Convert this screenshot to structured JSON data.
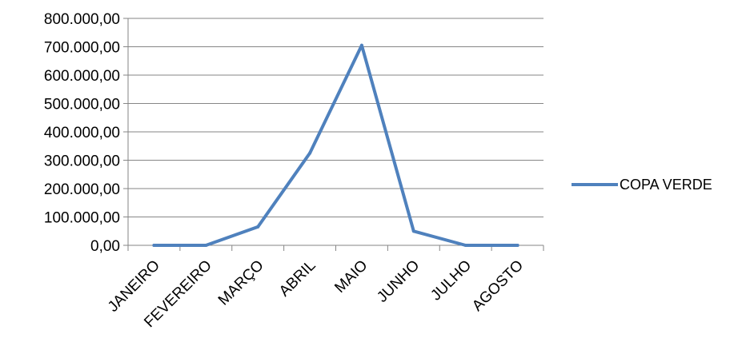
{
  "chart_data": {
    "type": "line",
    "categories": [
      "JANEIRO",
      "FEVEREIRO",
      "MARÇO",
      "ABRIL",
      "MAIO",
      "JUNHO",
      "JULHO",
      "AGOSTO"
    ],
    "series": [
      {
        "name": "COPA VERDE",
        "values": [
          0,
          0,
          65000,
          325000,
          705000,
          50000,
          0,
          0
        ],
        "color": "#4F81BD"
      }
    ],
    "ylim": [
      0,
      800000
    ],
    "yticks": [
      0,
      100000,
      200000,
      300000,
      400000,
      500000,
      600000,
      700000,
      800000
    ],
    "ytick_labels": [
      "0,00",
      "100.000,00",
      "200.000,00",
      "300.000,00",
      "400.000,00",
      "500.000,00",
      "600.000,00",
      "700.000,00",
      "800.000,00"
    ],
    "title": "",
    "xlabel": "",
    "ylabel": "",
    "grid": true,
    "legend_position": "right"
  }
}
